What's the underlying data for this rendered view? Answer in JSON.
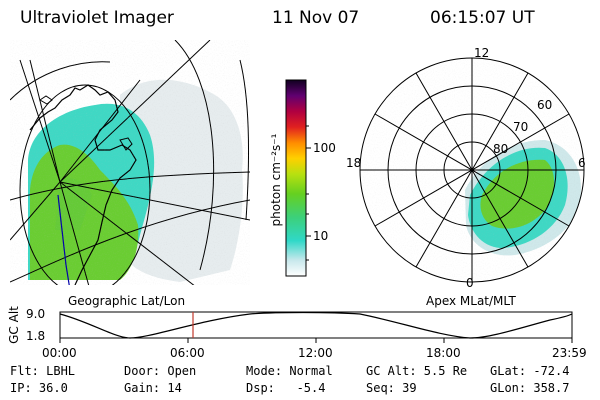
{
  "header": {
    "instrument": "Ultraviolet Imager",
    "date": "11 Nov 07",
    "time": "06:15:07 UT"
  },
  "left_panel": {
    "label": "Geographic Lat/Lon"
  },
  "colorbar": {
    "unit": "photon cm⁻²s⁻¹",
    "scale": "log",
    "ticks": [
      "100",
      "10"
    ]
  },
  "right_panel": {
    "label": "Apex MLat/MLT",
    "mlt_labels": {
      "top": "12",
      "left": "18",
      "right": "6",
      "bottom": "0"
    },
    "mlat_labels": [
      "60",
      "70",
      "80"
    ]
  },
  "altitude_plot": {
    "ylabel": "GC Alt",
    "y_max": "9.0",
    "y_min": "1.8",
    "x_ticks": [
      "00:00",
      "06:00",
      "12:00",
      "18:00",
      "23:59"
    ],
    "marker_time": "06:15:07"
  },
  "info": {
    "row1": {
      "flt": "Flt: LBHL",
      "door": "Door: Open",
      "mode": "Mode: Normal",
      "gc_alt": "GC Alt: 5.5 Re",
      "glat": "GLat: -72.4"
    },
    "row2": {
      "ip": "IP: 36.0",
      "gain": "Gain: 14",
      "dsp": "Dsp:   -5.4",
      "seq": "Seq: 39",
      "glon": "GLon: 358.7"
    }
  },
  "colors": {
    "emission_low": "#e8eef0",
    "emission_mid": "#3fd6c0",
    "emission_high": "#6acd32",
    "marker": "#c0392b",
    "trace": "#0000aa"
  }
}
